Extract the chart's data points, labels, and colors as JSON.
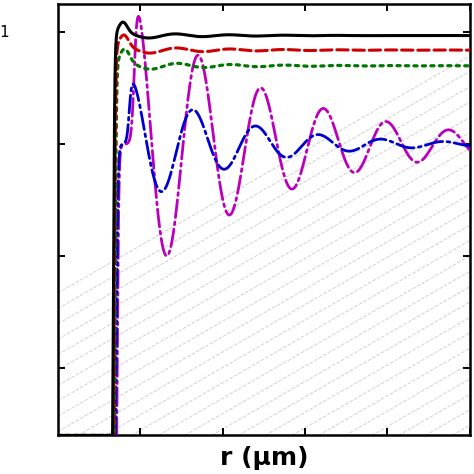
{
  "xlabel": "r (μm)",
  "xlabel_fontsize": 18,
  "xlabel_fontweight": "bold",
  "background_color": "#ffffff",
  "xlim": [
    0.0,
    10.0
  ],
  "ylim": [
    -2.6,
    1.25
  ],
  "figsize": [
    4.74,
    4.74
  ],
  "dpi": 100,
  "colors": {
    "black": "#000000",
    "red": "#cc0000",
    "green": "#007700",
    "blue": "#0000cc",
    "magenta": "#bb00bb"
  },
  "diag_color": "#aaaaaa",
  "diag_alpha": 0.55,
  "diag_linewidth": 0.7
}
